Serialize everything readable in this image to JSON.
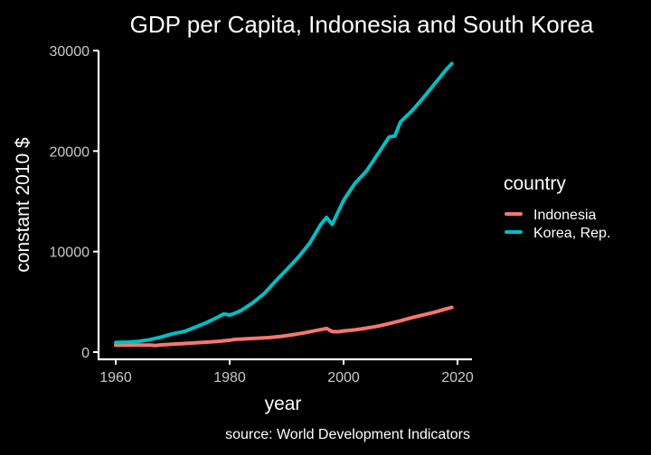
{
  "chart_data": {
    "type": "line",
    "title": "GDP per Capita, Indonesia and South Korea",
    "xlabel": "year",
    "ylabel": "constant 2010 $",
    "caption": "source: World Development Indicators",
    "xlim": [
      1960,
      2019
    ],
    "ylim": [
      0,
      30000
    ],
    "x_ticks": [
      1960,
      1980,
      2000,
      2020
    ],
    "y_ticks": [
      0,
      10000,
      20000,
      30000
    ],
    "grid": false,
    "legend": {
      "title": "country",
      "position": "right"
    },
    "series": [
      {
        "name": "Indonesia",
        "color": "#F8766D",
        "points": [
          [
            1960,
            680
          ],
          [
            1962,
            700
          ],
          [
            1964,
            700
          ],
          [
            1966,
            690
          ],
          [
            1967,
            660
          ],
          [
            1968,
            720
          ],
          [
            1970,
            790
          ],
          [
            1972,
            850
          ],
          [
            1974,
            920
          ],
          [
            1976,
            990
          ],
          [
            1978,
            1070
          ],
          [
            1980,
            1180
          ],
          [
            1981,
            1270
          ],
          [
            1982,
            1290
          ],
          [
            1983,
            1320
          ],
          [
            1985,
            1380
          ],
          [
            1987,
            1450
          ],
          [
            1989,
            1560
          ],
          [
            1991,
            1720
          ],
          [
            1993,
            1900
          ],
          [
            1995,
            2130
          ],
          [
            1997,
            2350
          ],
          [
            1998,
            2040
          ],
          [
            1999,
            2020
          ],
          [
            2000,
            2100
          ],
          [
            2002,
            2210
          ],
          [
            2004,
            2380
          ],
          [
            2006,
            2580
          ],
          [
            2008,
            2840
          ],
          [
            2010,
            3120
          ],
          [
            2012,
            3430
          ],
          [
            2014,
            3700
          ],
          [
            2016,
            3970
          ],
          [
            2018,
            4290
          ],
          [
            2019,
            4450
          ]
        ]
      },
      {
        "name": "Korea, Rep.",
        "color": "#00BFC4",
        "points": [
          [
            1960,
            950
          ],
          [
            1962,
            990
          ],
          [
            1964,
            1070
          ],
          [
            1966,
            1240
          ],
          [
            1968,
            1500
          ],
          [
            1970,
            1820
          ],
          [
            1972,
            2050
          ],
          [
            1974,
            2480
          ],
          [
            1976,
            2950
          ],
          [
            1978,
            3500
          ],
          [
            1979,
            3800
          ],
          [
            1980,
            3680
          ],
          [
            1981,
            3890
          ],
          [
            1982,
            4130
          ],
          [
            1984,
            4880
          ],
          [
            1986,
            5780
          ],
          [
            1988,
            7020
          ],
          [
            1990,
            8200
          ],
          [
            1992,
            9400
          ],
          [
            1994,
            10800
          ],
          [
            1996,
            12700
          ],
          [
            1997,
            13400
          ],
          [
            1998,
            12700
          ],
          [
            1999,
            13900
          ],
          [
            2000,
            15100
          ],
          [
            2002,
            16800
          ],
          [
            2004,
            18000
          ],
          [
            2006,
            19700
          ],
          [
            2008,
            21400
          ],
          [
            2009,
            21500
          ],
          [
            2010,
            22900
          ],
          [
            2012,
            24000
          ],
          [
            2014,
            25300
          ],
          [
            2016,
            26700
          ],
          [
            2018,
            28100
          ],
          [
            2019,
            28700
          ]
        ]
      }
    ]
  }
}
